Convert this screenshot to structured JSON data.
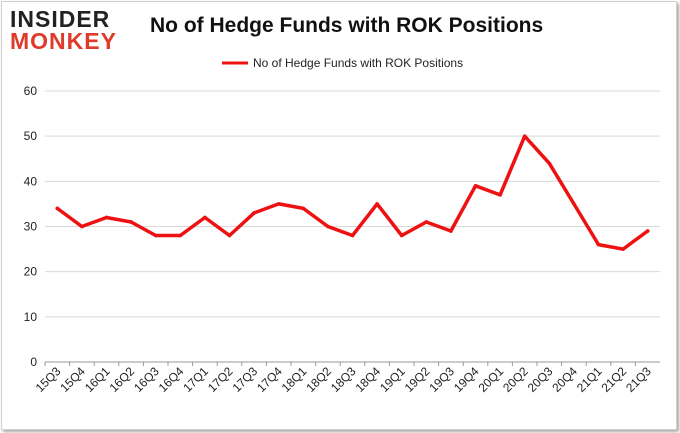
{
  "brand": {
    "line1": "INSIDER",
    "line2": "MONKEY"
  },
  "colors": {
    "series": "#ee1111",
    "grid": "#d9d9d9",
    "axis": "#999999"
  },
  "chart_data": {
    "type": "line",
    "title": "No of Hedge Funds with ROK Positions",
    "xlabel": "",
    "ylabel": "",
    "ylim": [
      0,
      60
    ],
    "yticks": [
      0,
      10,
      20,
      30,
      40,
      50,
      60
    ],
    "grid": true,
    "legend_position": "top-center",
    "categories": [
      "15Q3",
      "15Q4",
      "16Q1",
      "16Q2",
      "16Q3",
      "16Q4",
      "17Q1",
      "17Q2",
      "17Q3",
      "17Q4",
      "18Q1",
      "18Q2",
      "18Q3",
      "18Q4",
      "19Q1",
      "19Q2",
      "19Q3",
      "19Q4",
      "20Q1",
      "20Q2",
      "20Q3",
      "20Q4",
      "21Q1",
      "21Q2",
      "21Q3"
    ],
    "series": [
      {
        "name": "No of Hedge Funds with ROK Positions",
        "values": [
          34,
          30,
          32,
          31,
          28,
          28,
          32,
          28,
          33,
          35,
          34,
          30,
          28,
          35,
          28,
          31,
          29,
          39,
          37,
          50,
          44,
          35,
          26,
          25,
          29
        ]
      }
    ]
  }
}
